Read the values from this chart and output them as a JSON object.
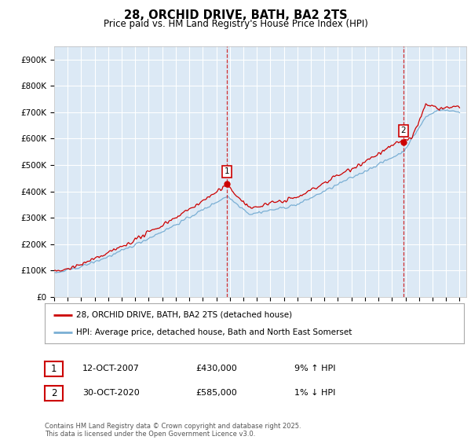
{
  "title1": "28, ORCHID DRIVE, BATH, BA2 2TS",
  "title2": "Price paid vs. HM Land Registry's House Price Index (HPI)",
  "ylim": [
    0,
    950000
  ],
  "yticks": [
    0,
    100000,
    200000,
    300000,
    400000,
    500000,
    600000,
    700000,
    800000,
    900000
  ],
  "yticklabels": [
    "£0",
    "£100K",
    "£200K",
    "£300K",
    "£400K",
    "£500K",
    "£600K",
    "£700K",
    "£800K",
    "£900K"
  ],
  "background_color": "#dce9f5",
  "grid_color": "#ffffff",
  "red_line_color": "#cc0000",
  "blue_line_color": "#7aafd4",
  "vline_color": "#cc0000",
  "marker1_year": 2007.79,
  "marker2_year": 2020.83,
  "marker1_price": 430000,
  "marker2_price": 585000,
  "legend_label1": "28, ORCHID DRIVE, BATH, BA2 2TS (detached house)",
  "legend_label2": "HPI: Average price, detached house, Bath and North East Somerset",
  "sale1_date": "12-OCT-2007",
  "sale1_price": "£430,000",
  "sale1_hpi": "9% ↑ HPI",
  "sale2_date": "30-OCT-2020",
  "sale2_price": "£585,000",
  "sale2_hpi": "1% ↓ HPI",
  "footnote": "Contains HM Land Registry data © Crown copyright and database right 2025.\nThis data is licensed under the Open Government Licence v3.0."
}
